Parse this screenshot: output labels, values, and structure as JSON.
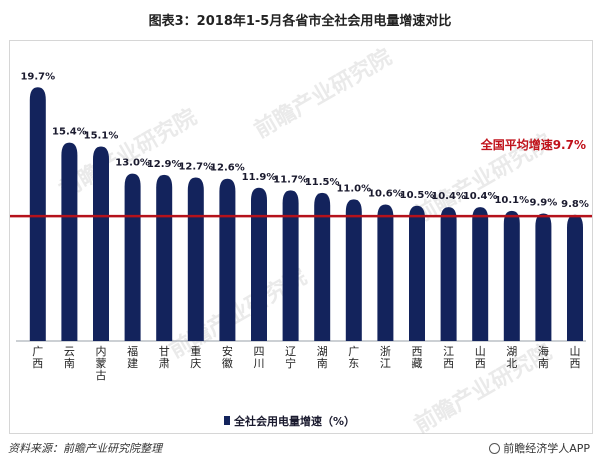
{
  "title": "图表3：2018年1-5月各省市全社会用电量增速对比",
  "source": "资料来源：前瞻产业研究院整理",
  "brand": "前瞻经济学人APP",
  "watermark": "前瞻产业研究院",
  "colors": {
    "bar": "#13235c",
    "average_line": "#b5121b",
    "average_text": "#c0121b"
  },
  "chart_data": {
    "type": "bar",
    "title": "图表3：2018年1-5月各省市全社会用电量增速对比",
    "categories": [
      "广西",
      "云南",
      "内蒙古",
      "福建",
      "甘肃",
      "重庆",
      "安徽",
      "四川",
      "辽宁",
      "湖南",
      "广东",
      "浙江",
      "西藏",
      "江西",
      "山西",
      "湖北",
      "海南",
      "山西"
    ],
    "series": [
      {
        "name": "全社会用电量增速（%）",
        "values": [
          19.7,
          15.4,
          15.1,
          13.0,
          12.9,
          12.7,
          12.6,
          11.9,
          11.7,
          11.5,
          11.0,
          10.6,
          10.5,
          10.4,
          10.4,
          10.1,
          9.9,
          9.8
        ]
      }
    ],
    "value_labels": [
      "19.7%",
      "15.4%",
      "15.1%",
      "13.0%",
      "12.9%",
      "12.7%",
      "12.6%",
      "11.9%",
      "11.7%",
      "11.5%",
      "11.0%",
      "10.6%",
      "10.5%",
      "10.4%",
      "10.4%",
      "10.1%",
      "9.9%",
      "9.8%"
    ],
    "reference_line": {
      "label": "全国平均增速9.7%",
      "value": 9.7
    },
    "legend": {
      "label": "全社会用电量增速（%）",
      "position": "bottom-center"
    },
    "ylim": [
      0,
      20
    ],
    "grid": false
  }
}
